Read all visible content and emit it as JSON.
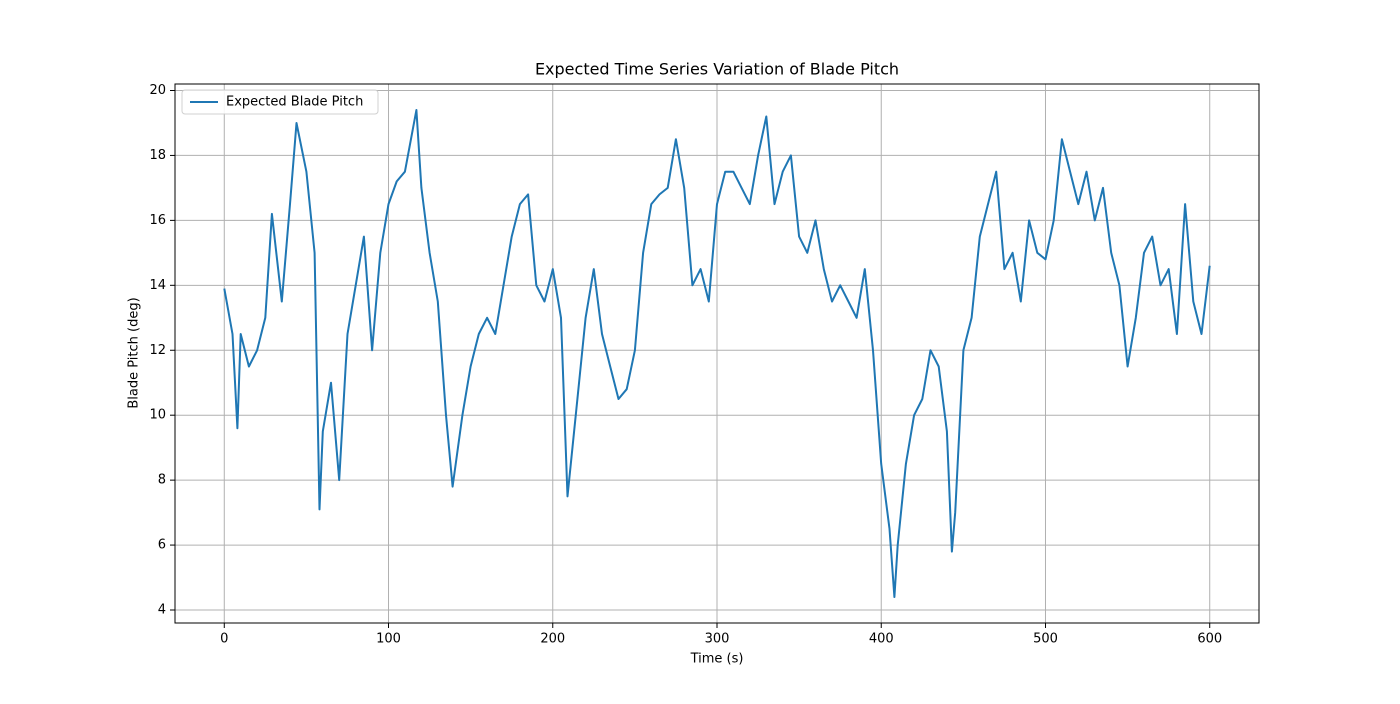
{
  "chart_data": {
    "type": "line",
    "title": "Expected Time Series Variation of Blade Pitch",
    "x_label": "Time (s)",
    "y_label": "Blade Pitch (deg)",
    "x": [
      0,
      5,
      8,
      10,
      15,
      20,
      25,
      29,
      35,
      40,
      44,
      50,
      55,
      58,
      60,
      65,
      70,
      75,
      80,
      85,
      90,
      95,
      100,
      105,
      110,
      117,
      120,
      125,
      130,
      135,
      139,
      145,
      150,
      155,
      160,
      165,
      170,
      175,
      180,
      185,
      190,
      195,
      200,
      205,
      209,
      215,
      220,
      225,
      230,
      235,
      240,
      245,
      250,
      255,
      260,
      265,
      270,
      275,
      280,
      285,
      290,
      295,
      300,
      305,
      310,
      315,
      320,
      325,
      330,
      335,
      340,
      345,
      350,
      355,
      360,
      365,
      370,
      375,
      380,
      385,
      390,
      395,
      400,
      405,
      408,
      410,
      415,
      420,
      425,
      430,
      435,
      440,
      443,
      445,
      450,
      455,
      460,
      465,
      470,
      475,
      480,
      485,
      490,
      495,
      500,
      505,
      510,
      515,
      520,
      525,
      530,
      535,
      540,
      545,
      550,
      555,
      560,
      565,
      570,
      575,
      580,
      585,
      590,
      595,
      600
    ],
    "series": [
      {
        "name": "Expected Blade Pitch",
        "color": "#1f77b4",
        "values": [
          13.9,
          12.5,
          9.6,
          12.5,
          11.5,
          12.0,
          13.0,
          16.2,
          13.5,
          16.5,
          19.0,
          17.5,
          15.0,
          7.1,
          9.5,
          11.0,
          8.0,
          12.5,
          14.0,
          15.5,
          12.0,
          15.0,
          16.5,
          17.2,
          17.5,
          19.4,
          17.0,
          15.0,
          13.5,
          10.0,
          7.8,
          10.0,
          11.5,
          12.5,
          13.0,
          12.5,
          14.0,
          15.5,
          16.5,
          16.8,
          14.0,
          13.5,
          14.5,
          13.0,
          7.5,
          10.5,
          13.0,
          14.5,
          12.5,
          11.5,
          10.5,
          10.8,
          12.0,
          15.0,
          16.5,
          16.8,
          17.0,
          18.5,
          17.0,
          14.0,
          14.5,
          13.5,
          16.5,
          17.5,
          17.5,
          17.0,
          16.5,
          18.0,
          19.2,
          16.5,
          17.5,
          18.0,
          15.5,
          15.0,
          16.0,
          14.5,
          13.5,
          14.0,
          13.5,
          13.0,
          14.5,
          12.0,
          8.5,
          6.5,
          4.4,
          6.0,
          8.5,
          10.0,
          10.5,
          12.0,
          11.5,
          9.5,
          5.8,
          7.0,
          12.0,
          13.0,
          15.5,
          16.5,
          17.5,
          14.5,
          15.0,
          13.5,
          16.0,
          15.0,
          14.8,
          16.0,
          18.5,
          17.5,
          16.5,
          17.5,
          16.0,
          17.0,
          15.0,
          14.0,
          11.5,
          13.0,
          15.0,
          15.5,
          14.0,
          14.5,
          12.5,
          16.5,
          13.5,
          12.5,
          14.6
        ]
      }
    ],
    "xlim": [
      -30,
      630
    ],
    "ylim": [
      3.6,
      20.2
    ],
    "xticks": [
      0,
      100,
      200,
      300,
      400,
      500,
      600
    ],
    "yticks": [
      4,
      6,
      8,
      10,
      12,
      14,
      16,
      18,
      20
    ],
    "grid": true,
    "legend": "upper left"
  }
}
